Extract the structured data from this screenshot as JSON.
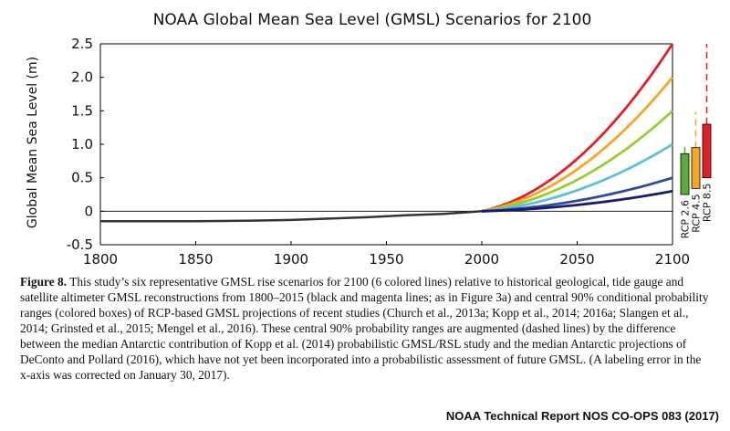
{
  "chart_data": {
    "type": "line",
    "title": "NOAA Global Mean Sea Level (GMSL) Scenarios for 2100",
    "xlabel": "",
    "ylabel": "Global Mean Sea Level (m)",
    "xlim": [
      1800,
      2100
    ],
    "ylim": [
      -0.5,
      2.5
    ],
    "xticks": [
      1800,
      1850,
      1900,
      1950,
      2000,
      2050,
      2100
    ],
    "yticks": [
      -0.5,
      0,
      0.5,
      1.0,
      1.5,
      2.0,
      2.5
    ],
    "ytick_labels": [
      "-0.5",
      "0",
      "0.5",
      "1.0",
      "1.5",
      "2.0",
      "2.5"
    ],
    "grid": false,
    "historical": {
      "x": [
        1800,
        1850,
        1880,
        1900,
        1920,
        1940,
        1960,
        1980,
        1990,
        2000
      ],
      "y": [
        -0.15,
        -0.15,
        -0.14,
        -0.13,
        -0.11,
        -0.09,
        -0.06,
        -0.04,
        -0.02,
        0.0
      ],
      "color": "#333333"
    },
    "series": [
      {
        "end": 2.5,
        "color": "#e41e26"
      },
      {
        "end": 2.0,
        "color": "#f5a623"
      },
      {
        "end": 1.5,
        "color": "#9acd32"
      },
      {
        "end": 1.0,
        "color": "#5bc0de"
      },
      {
        "end": 0.5,
        "color": "#2e4a9e"
      },
      {
        "end": 0.3,
        "color": "#1a1a6e"
      }
    ],
    "series_start": 2000,
    "boxes": [
      {
        "name": "RCP 2.6",
        "low": 0.25,
        "high": 0.86,
        "dash_high": 0.96,
        "color": "#5aad3a"
      },
      {
        "name": "RCP 4.5",
        "low": 0.34,
        "high": 0.95,
        "dash_high": 1.48,
        "color": "#f5a623"
      },
      {
        "name": "RCP 8.5",
        "low": 0.5,
        "high": 1.3,
        "dash_high": 2.5,
        "color": "#e41e26"
      }
    ]
  },
  "caption": {
    "label": "Figure 8.",
    "text": "This study’s six representative GMSL rise scenarios for 2100 (6 colored lines) relative to historical geological, tide gauge and satellite altimeter GMSL reconstructions from 1800–2015 (black and magenta lines; as in Figure 3a) and central 90% conditional probability ranges (colored boxes) of RCP-based GMSL projections of recent studies (Church et al., 2013a; Kopp et al., 2014; 2016a; Slangen et al., 2014; Grinsted et al., 2015; Mengel et al., 2016). These central 90% probability ranges are augmented (dashed lines) by the difference between the median Antarctic contribution of Kopp et al. (2014) probabilistic GMSL/RSL study and the median Antarctic projections of DeConto and Pollard (2016), which have not yet been incorporated into a probabilistic assessment of future GMSL. (A labeling error in the x-axis was corrected on January 30, 2017)."
  },
  "footer": "NOAA Technical Report NOS CO-OPS 083 (2017)"
}
